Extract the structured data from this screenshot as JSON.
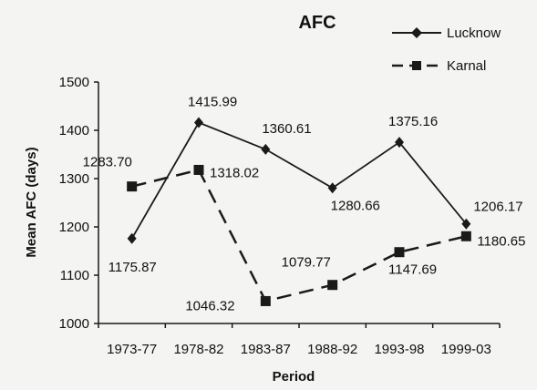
{
  "chart_data": {
    "type": "line",
    "title": "AFC",
    "xlabel": "Period",
    "ylabel": "Mean AFC (days)",
    "categories": [
      "1973-77",
      "1978-82",
      "1983-87",
      "1988-92",
      "1993-98",
      "1999-03"
    ],
    "ylim": [
      1000,
      1500
    ],
    "yticks": [
      1000,
      1100,
      1200,
      1300,
      1400,
      1500
    ],
    "grid": false,
    "legend_position": "top-right",
    "series": [
      {
        "name": "Lucknow",
        "marker": "diamond",
        "line_style": "solid",
        "values": [
          1175.87,
          1415.99,
          1360.61,
          1280.66,
          1375.16,
          1206.17
        ],
        "labels": [
          "1175.87",
          "1415.99",
          "1360.61",
          "1280.66",
          "1375.16",
          "1206.17"
        ]
      },
      {
        "name": "Karnal",
        "marker": "square",
        "line_style": "dashed",
        "values": [
          1283.7,
          1318.02,
          1046.32,
          1079.77,
          1147.69,
          1180.65
        ],
        "labels": [
          "1283.70",
          "1318.02",
          "1046.32",
          "1079.77",
          "1147.69",
          "1180.65"
        ]
      }
    ],
    "colors": {
      "line": "#1a1a1a",
      "text": "#111111"
    }
  }
}
